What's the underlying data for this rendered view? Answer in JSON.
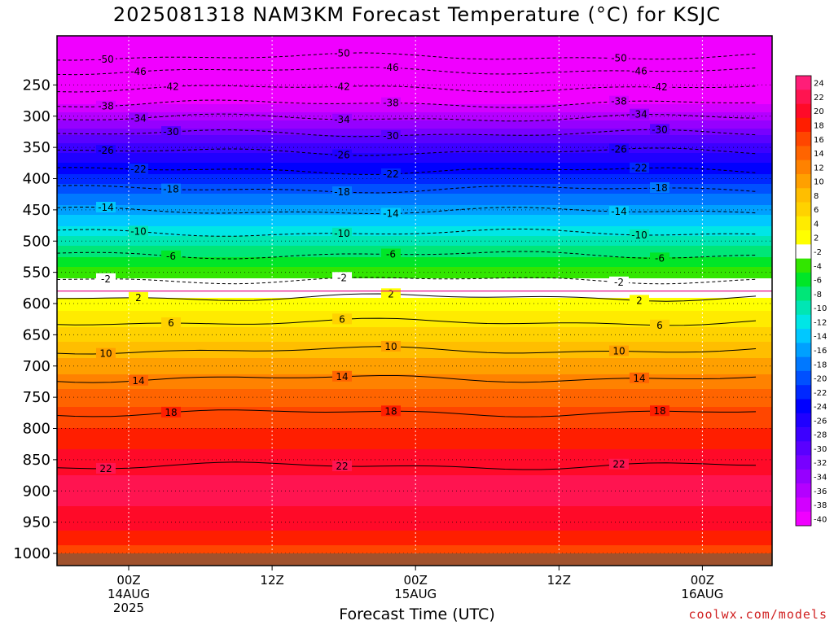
{
  "title": "2025081318 NAM3KM Forecast Temperature (°C) for KSJC",
  "chart_data": {
    "type": "heatmap",
    "xlabel": "Forecast Time (UTC)",
    "ylabel": "",
    "x_range_hours": [
      -9,
      66
    ],
    "y_axis": {
      "quantity": "pressure (hPa)",
      "reversed": true,
      "range": [
        1000,
        200
      ]
    },
    "y_ticks": [
      "250",
      "300",
      "350",
      "400",
      "450",
      "500",
      "550",
      "600",
      "650",
      "700",
      "750",
      "800",
      "850",
      "900",
      "950",
      "1000"
    ],
    "x_ticks": [
      {
        "hour": 6,
        "lines": [
          "00Z",
          "14AUG",
          "2025"
        ]
      },
      {
        "hour": 18,
        "lines": [
          "12Z",
          "",
          ""
        ]
      },
      {
        "hour": 30,
        "lines": [
          "00Z",
          "15AUG",
          ""
        ]
      },
      {
        "hour": 42,
        "lines": [
          "12Z",
          "",
          ""
        ]
      },
      {
        "hour": 54,
        "lines": [
          "00Z",
          "16AUG",
          ""
        ]
      }
    ],
    "grid": true,
    "temperature_profile": [
      {
        "p": 200,
        "t": -52
      },
      {
        "p": 225,
        "t": -47
      },
      {
        "p": 250,
        "t": -43
      },
      {
        "p": 275,
        "t": -39
      },
      {
        "p": 300,
        "t": -35
      },
      {
        "p": 325,
        "t": -31
      },
      {
        "p": 350,
        "t": -27
      },
      {
        "p": 375,
        "t": -24
      },
      {
        "p": 400,
        "t": -21
      },
      {
        "p": 425,
        "t": -18
      },
      {
        "p": 450,
        "t": -15
      },
      {
        "p": 475,
        "t": -12
      },
      {
        "p": 500,
        "t": -9
      },
      {
        "p": 525,
        "t": -6
      },
      {
        "p": 550,
        "t": -3
      },
      {
        "p": 575,
        "t": 0
      },
      {
        "p": 600,
        "t": 3
      },
      {
        "p": 650,
        "t": 7
      },
      {
        "p": 700,
        "t": 11
      },
      {
        "p": 750,
        "t": 15
      },
      {
        "p": 800,
        "t": 18
      },
      {
        "p": 850,
        "t": 21
      },
      {
        "p": 900,
        "t": 23
      },
      {
        "p": 950,
        "t": 21
      },
      {
        "p": 1000,
        "t": 17
      }
    ],
    "contours": [
      {
        "label": "-50",
        "p": 205,
        "dashed": true
      },
      {
        "label": "-46",
        "p": 227,
        "dashed": true
      },
      {
        "label": "-42",
        "p": 255,
        "dashed": true
      },
      {
        "label": "-38",
        "p": 280,
        "dashed": true
      },
      {
        "label": "-34",
        "p": 303,
        "dashed": true
      },
      {
        "label": "-30",
        "p": 328,
        "dashed": true
      },
      {
        "label": "-26",
        "p": 357,
        "dashed": true
      },
      {
        "label": "-22",
        "p": 387,
        "dashed": true
      },
      {
        "label": "-18",
        "p": 417,
        "dashed": true
      },
      {
        "label": "-14",
        "p": 452,
        "dashed": true
      },
      {
        "label": "-10",
        "p": 487,
        "dashed": true
      },
      {
        "label": "-6",
        "p": 522,
        "dashed": true
      },
      {
        "label": "-2",
        "p": 562,
        "dashed": true
      },
      {
        "label": "2",
        "p": 590,
        "dashed": false
      },
      {
        "label": "6",
        "p": 630,
        "dashed": false
      },
      {
        "label": "10",
        "p": 675,
        "dashed": false
      },
      {
        "label": "14",
        "p": 720,
        "dashed": false
      },
      {
        "label": "18",
        "p": 775,
        "dashed": false
      },
      {
        "label": "22",
        "p": 860,
        "dashed": false
      }
    ],
    "colorbar": {
      "levels": [
        "24",
        "22",
        "20",
        "18",
        "16",
        "14",
        "12",
        "10",
        "8",
        "6",
        "4",
        "2",
        "-2",
        "-4",
        "-6",
        "-8",
        "-10",
        "-12",
        "-14",
        "-16",
        "-18",
        "-20",
        "-22",
        "-24",
        "-26",
        "-28",
        "-30",
        "-32",
        "-34",
        "-36",
        "-38",
        "-40"
      ],
      "colors": [
        "#ff1e78",
        "#ff1450",
        "#ff0a28",
        "#ff1e00",
        "#ff4600",
        "#ff6400",
        "#ff8200",
        "#ffa000",
        "#ffbe00",
        "#ffd200",
        "#ffeb00",
        "#ffff00",
        "#ffffff",
        "#32e600",
        "#00e628",
        "#00e678",
        "#00e6b4",
        "#00e6e6",
        "#00c8ff",
        "#00a0ff",
        "#0078ff",
        "#0050ff",
        "#0028ff",
        "#0000ff",
        "#2000ff",
        "#3c00ff",
        "#5a00ff",
        "#7800ff",
        "#9600ff",
        "#b400ff",
        "#d200ff",
        "#f000ff"
      ]
    },
    "zero_line_color": "#e6148c",
    "ground_color": "#a0522d"
  },
  "credit": "coolwx.com/models"
}
